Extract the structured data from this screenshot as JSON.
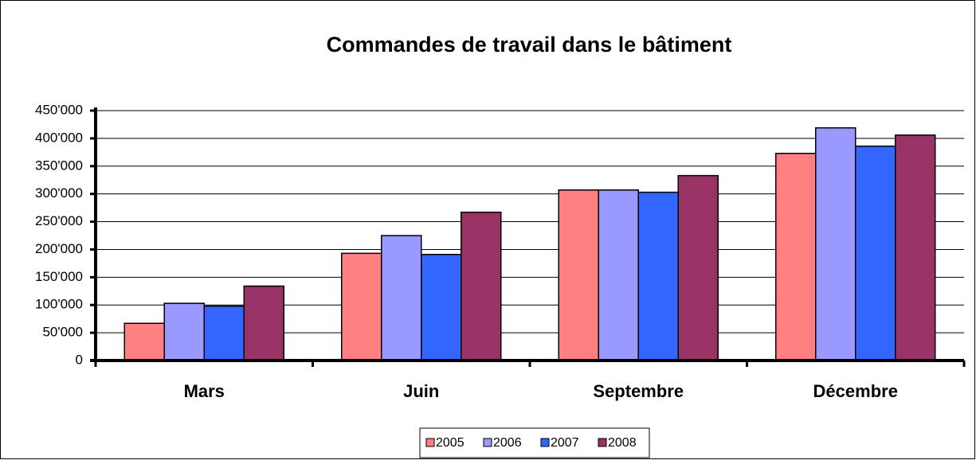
{
  "chart_data": {
    "type": "bar",
    "title": "Commandes de travail dans le bâtiment",
    "categories": [
      "Mars",
      "Juin",
      "Septembre",
      "Décembre"
    ],
    "series": [
      {
        "name": "2005",
        "color": "#ff8080",
        "values": [
          67000,
          193000,
          307000,
          373000
        ]
      },
      {
        "name": "2006",
        "color": "#9999ff",
        "values": [
          103000,
          225000,
          307000,
          419000
        ]
      },
      {
        "name": "2007",
        "color": "#3366ff",
        "values": [
          98000,
          191000,
          303000,
          386000
        ]
      },
      {
        "name": "2008",
        "color": "#993366",
        "values": [
          134000,
          267000,
          333000,
          406000
        ]
      }
    ],
    "ylim": [
      0,
      450000
    ],
    "yticks": [
      0,
      {
        "value": 50000,
        "label": "50'000"
      },
      {
        "value": 100000,
        "label": "100'000"
      },
      {
        "value": 150000,
        "label": "150'000"
      },
      {
        "value": 200000,
        "label": "200'000"
      },
      {
        "value": 250000,
        "label": "250'000"
      },
      {
        "value": 300000,
        "label": "300'000"
      },
      {
        "value": 350000,
        "label": "350'000"
      },
      {
        "value": 400000,
        "label": "400'000"
      },
      {
        "value": 450000,
        "label": "450'000"
      }
    ],
    "grid": true,
    "legend": "bottom"
  }
}
